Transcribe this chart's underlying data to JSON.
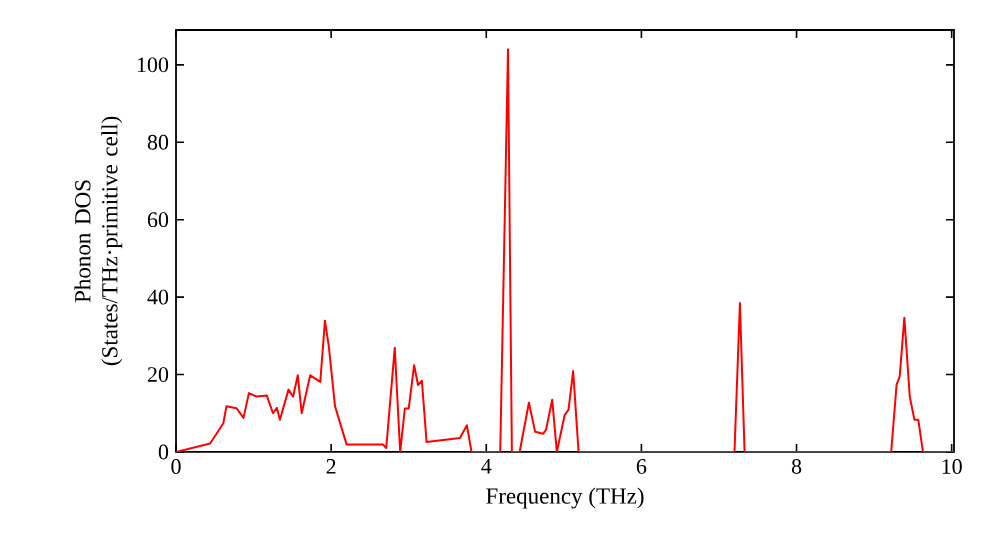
{
  "chart_data": {
    "type": "line",
    "xlabel": "Frequency (THz)",
    "ylabel": "Phonon DOS (States/THz·primitive cell)",
    "xlim": [
      0,
      10.03
    ],
    "ylim": [
      0,
      109
    ],
    "xticks": [
      0,
      2,
      4,
      6,
      8,
      10
    ],
    "yticks": [
      0,
      20,
      40,
      60,
      80,
      100
    ],
    "grid": false,
    "marker": "none",
    "line_style": "solid",
    "series": [
      {
        "color": "#ff0000",
        "x": [
          0.0,
          0.44,
          0.61,
          0.65,
          0.78,
          0.87,
          0.94,
          1.04,
          1.17,
          1.25,
          1.3,
          1.34,
          1.45,
          1.51,
          1.57,
          1.62,
          1.73,
          1.86,
          1.92,
          1.97,
          2.05,
          2.2,
          2.67,
          2.71,
          2.82,
          2.89,
          2.95,
          3.0,
          3.07,
          3.12,
          3.17,
          3.23,
          3.66,
          3.75,
          3.81,
          4.18,
          4.28,
          4.33,
          4.43,
          4.55,
          4.63,
          4.73,
          4.77,
          4.85,
          4.91,
          5.01,
          5.06,
          5.12,
          5.19,
          7.2,
          7.27,
          7.33,
          9.22,
          9.29,
          9.33,
          9.39,
          9.46,
          9.52,
          9.57,
          9.63,
          10.03
        ],
        "values": [
          0,
          2.2,
          7.4,
          11.8,
          11.3,
          8.8,
          15.2,
          14.3,
          14.6,
          10,
          11.4,
          8.3,
          16.1,
          14.3,
          19.8,
          10,
          19.8,
          18.1,
          33.9,
          27.3,
          11.8,
          1.9,
          1.9,
          1.0,
          26.9,
          0,
          11.2,
          11.2,
          22.4,
          17.3,
          18.4,
          2.6,
          3.6,
          6.9,
          0,
          0,
          104,
          0,
          0,
          12.7,
          5.2,
          4.7,
          5.7,
          13.5,
          0,
          9.5,
          10.9,
          20.9,
          0,
          0,
          38.5,
          0,
          0,
          17.4,
          19.5,
          34.7,
          14.3,
          8.3,
          8.3,
          0,
          0
        ]
      }
    ]
  }
}
